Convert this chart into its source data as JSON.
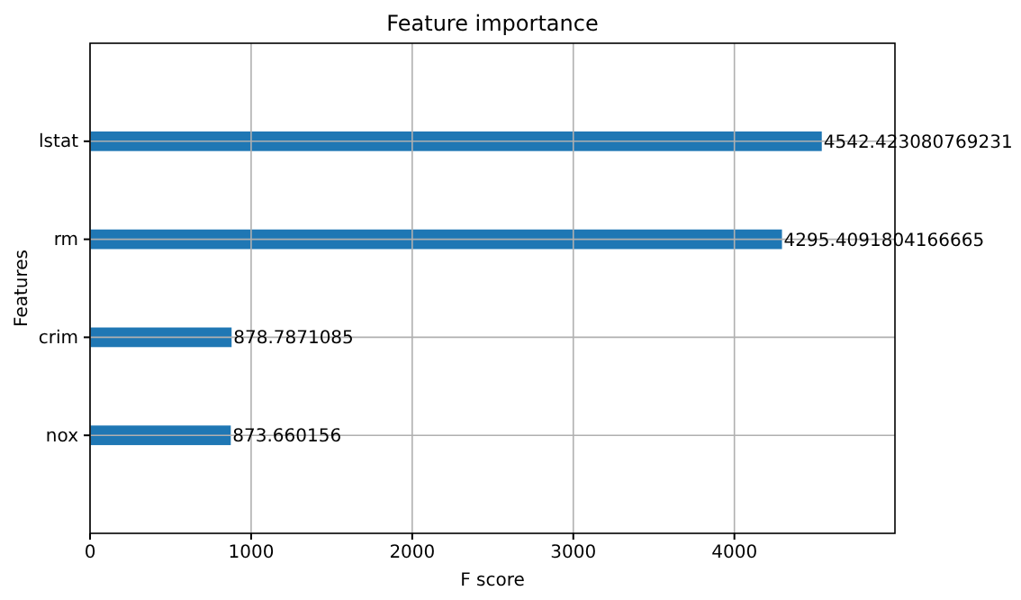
{
  "chart_data": {
    "type": "bar",
    "orientation": "horizontal",
    "title": "Feature importance",
    "xlabel": "F score",
    "ylabel": "Features",
    "categories": [
      "lstat",
      "rm",
      "crim",
      "nox"
    ],
    "values": [
      4542.423080769231,
      4295.4091804166665,
      878.7871085,
      873.660156
    ],
    "color": "#1f77b4",
    "xlim": [
      0,
      4996.7
    ],
    "xticks": [
      0,
      1000,
      2000,
      3000,
      4000
    ],
    "grid": true,
    "data_labels": true
  }
}
